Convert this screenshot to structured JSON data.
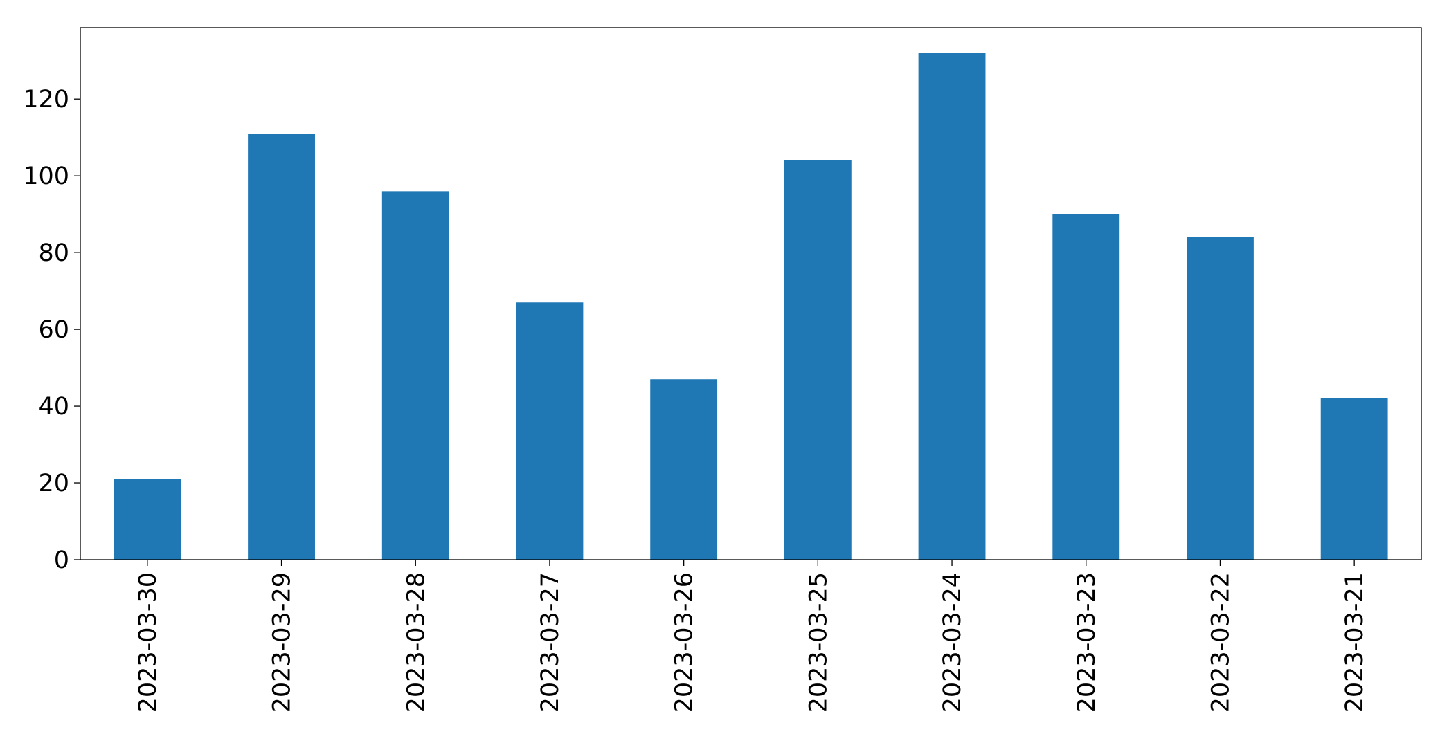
{
  "chart_data": {
    "type": "bar",
    "categories": [
      "2023-03-30",
      "2023-03-29",
      "2023-03-28",
      "2023-03-27",
      "2023-03-26",
      "2023-03-25",
      "2023-03-24",
      "2023-03-23",
      "2023-03-22",
      "2023-03-21"
    ],
    "values": [
      21,
      111,
      96,
      67,
      47,
      104,
      132,
      90,
      84,
      42
    ],
    "color": "#1f77b4",
    "ylim": [
      0,
      138.6
    ],
    "yticks": [
      0,
      20,
      40,
      60,
      80,
      100,
      120
    ],
    "grid": false
  }
}
